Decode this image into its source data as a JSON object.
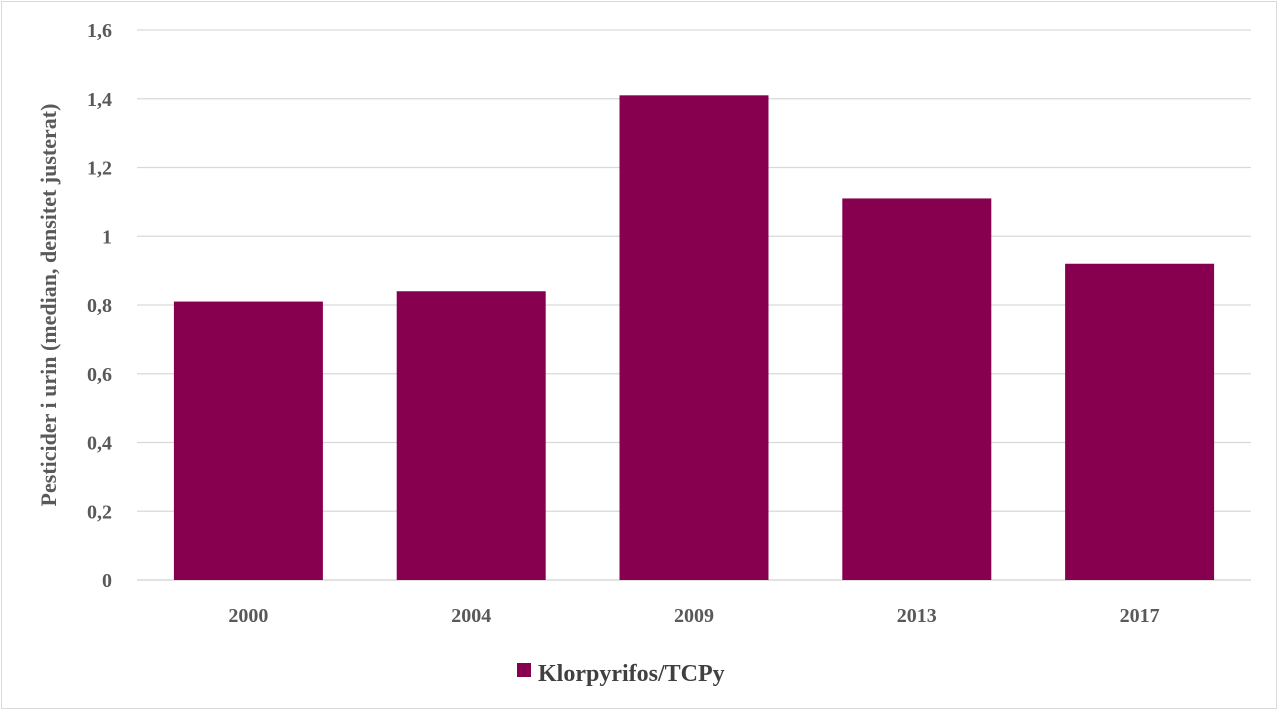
{
  "chart_data": {
    "type": "bar",
    "title": "",
    "xlabel": "",
    "ylabel": "Pesticider i urin (median, densitet justerat)",
    "categories": [
      "2000",
      "2004",
      "2009",
      "2013",
      "2017"
    ],
    "series": [
      {
        "name": "Klorpyrifos/TCPy",
        "values": [
          0.81,
          0.84,
          1.41,
          1.11,
          0.92
        ],
        "color": "#870050"
      }
    ],
    "ylim": [
      0,
      1.6
    ],
    "yticks": [
      0,
      0.2,
      0.4,
      0.6,
      0.8,
      1,
      1.2,
      1.4,
      1.6
    ],
    "ytick_labels": [
      "0",
      "0,2",
      "0,4",
      "0,6",
      "0,8",
      "1",
      "1,2",
      "1,4",
      "1,6"
    ],
    "grid": true,
    "legend": "bottom"
  }
}
